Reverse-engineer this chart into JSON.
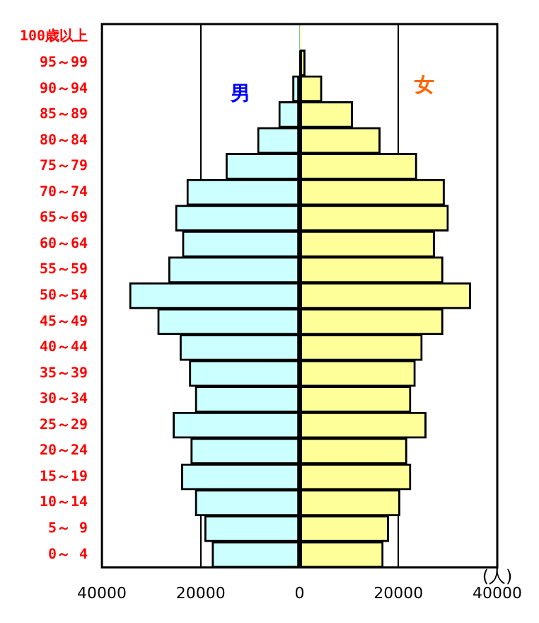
{
  "chart_data": {
    "type": "bar",
    "orientation": "horizontal",
    "stacked": true,
    "categories": [
      "100歳以上",
      "95～99",
      "90～94",
      "85～89",
      "80～84",
      "75～79",
      "70～74",
      "65～69",
      "60～64",
      "55～59",
      "50～54",
      "45～49",
      "40～44",
      "35～39",
      "30～34",
      "25～29",
      "20～24",
      "15～19",
      "10～14",
      "5～ 9",
      "0～ 4"
    ],
    "series": [
      {
        "name": "男",
        "color": "#ccffff",
        "values": [
          -100,
          null,
          -1400,
          -4200,
          -8500,
          -14900,
          -22800,
          -25100,
          -23700,
          -26500,
          -34400,
          -28700,
          -24200,
          -22300,
          -21100,
          -25600,
          -22000,
          -23900,
          -21100,
          -19200,
          -17700
        ]
      },
      {
        "name": "女",
        "color": "#ffff99",
        "values": [
          100,
          1100,
          4500,
          10700,
          16300,
          23700,
          29300,
          30100,
          27300,
          29000,
          34600,
          29000,
          24800,
          23400,
          22500,
          25600,
          21700,
          22500,
          20300,
          18000,
          16900
        ]
      }
    ],
    "xlabel": "(人)",
    "xlim": [
      -40000,
      40000
    ],
    "xticks": [
      {
        "value": -40000,
        "label": "40000"
      },
      {
        "value": -20000,
        "label": "20000"
      },
      0,
      20000,
      40000
    ],
    "grid": "x",
    "legend": false
  }
}
